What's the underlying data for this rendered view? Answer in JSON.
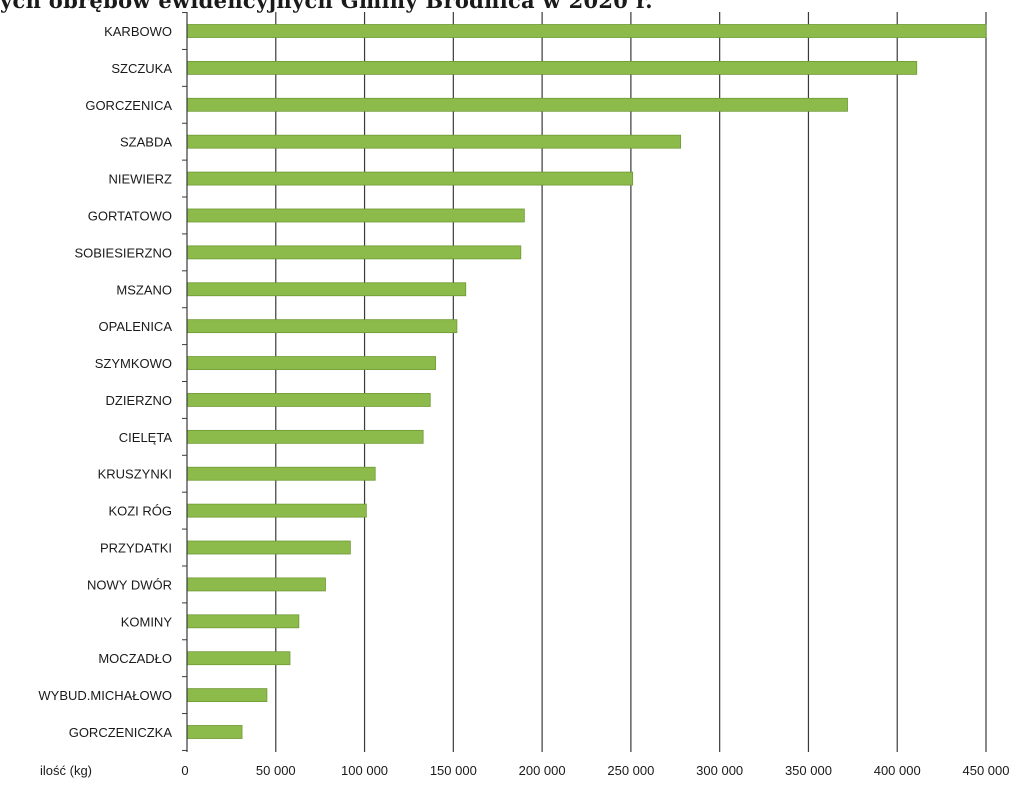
{
  "chart_data": {
    "type": "bar",
    "orientation": "horizontal",
    "title": "ych obrębów ewidencyjnych Gminy Brodnica w 2020 r.",
    "xlabel": "ilość (kg)",
    "ylabel": "",
    "xlim": [
      0,
      450000
    ],
    "xticks": [
      0,
      50000,
      100000,
      150000,
      200000,
      250000,
      300000,
      350000,
      400000,
      450000
    ],
    "xtick_labels": [
      "0",
      "50 000",
      "100 000",
      "150 000",
      "200 000",
      "250 000",
      "300 000",
      "350 000",
      "400 000",
      "450 000"
    ],
    "grid": true,
    "legend": "none",
    "bar_color": "#8dbb4b",
    "bar_edge_color": "#6e9a33",
    "categories": [
      "KARBOWO",
      "SZCZUKA",
      "GORCZENICA",
      "SZABDA",
      "NIEWIERZ",
      "GORTATOWO",
      "SOBIESIERZNO",
      "MSZANO",
      "OPALENICA",
      "SZYMKOWO",
      "DZIERZNO",
      "CIELĘTA",
      "KRUSZYNKI",
      "KOZI RÓG",
      "PRZYDATKI",
      "NOWY DWÓR",
      "KOMINY",
      "MOCZADŁO",
      "WYBUD.MICHAŁOWO",
      "GORCZENICZKA"
    ],
    "values": [
      450000,
      411000,
      372000,
      278000,
      251000,
      190000,
      188000,
      157000,
      152000,
      140000,
      137000,
      133000,
      106000,
      101000,
      92000,
      78000,
      63000,
      58000,
      45000,
      31000
    ]
  }
}
